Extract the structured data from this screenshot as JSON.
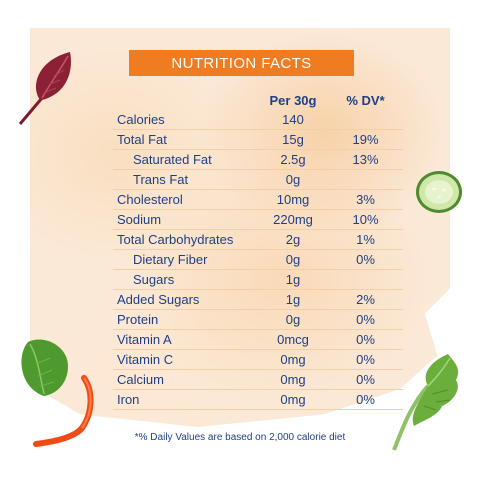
{
  "banner": "NUTRITION FACTS",
  "columns": {
    "amount": "Per 30g",
    "dv": "% DV*"
  },
  "rows": [
    {
      "name": "Calories",
      "amount": "140",
      "dv": "",
      "sub": false
    },
    {
      "name": "Total Fat",
      "amount": "15g",
      "dv": "19%",
      "sub": false
    },
    {
      "name": "Saturated Fat",
      "amount": "2.5g",
      "dv": "13%",
      "sub": true
    },
    {
      "name": "Trans Fat",
      "amount": "0g",
      "dv": "",
      "sub": true
    },
    {
      "name": "Cholesterol",
      "amount": "10mg",
      "dv": "3%",
      "sub": false
    },
    {
      "name": "Sodium",
      "amount": "220mg",
      "dv": "10%",
      "sub": false
    },
    {
      "name": "Total Carbohydrates",
      "amount": "2g",
      "dv": "1%",
      "sub": false
    },
    {
      "name": "Dietary Fiber",
      "amount": "0g",
      "dv": "0%",
      "sub": true
    },
    {
      "name": "Sugars",
      "amount": "1g",
      "dv": "",
      "sub": true
    },
    {
      "name": "Added Sugars",
      "amount": "1g",
      "dv": "2%",
      "sub": false
    },
    {
      "name": "Protein",
      "amount": "0g",
      "dv": "0%",
      "sub": false
    },
    {
      "name": "Vitamin A",
      "amount": "0mcg",
      "dv": "0%",
      "sub": false
    },
    {
      "name": "Vitamin C",
      "amount": "0mg",
      "dv": "0%",
      "sub": false
    },
    {
      "name": "Calcium",
      "amount": "0mg",
      "dv": "0%",
      "sub": false
    },
    {
      "name": "Iron",
      "amount": "0mg",
      "dv": "0%",
      "sub": false
    }
  ],
  "footnote": "*% Daily Values are based on 2,000 calorie diet",
  "colors": {
    "banner": "#f07c22",
    "text": "#1f3f86",
    "divider": "#f3cfa8",
    "background_wash": "#fbe9d8"
  },
  "decorations": [
    "red-chard-leaf-icon",
    "cucumber-slice-icon",
    "basil-leaf-icon",
    "red-pepper-strip-icon",
    "lettuce-leaf-icon"
  ]
}
